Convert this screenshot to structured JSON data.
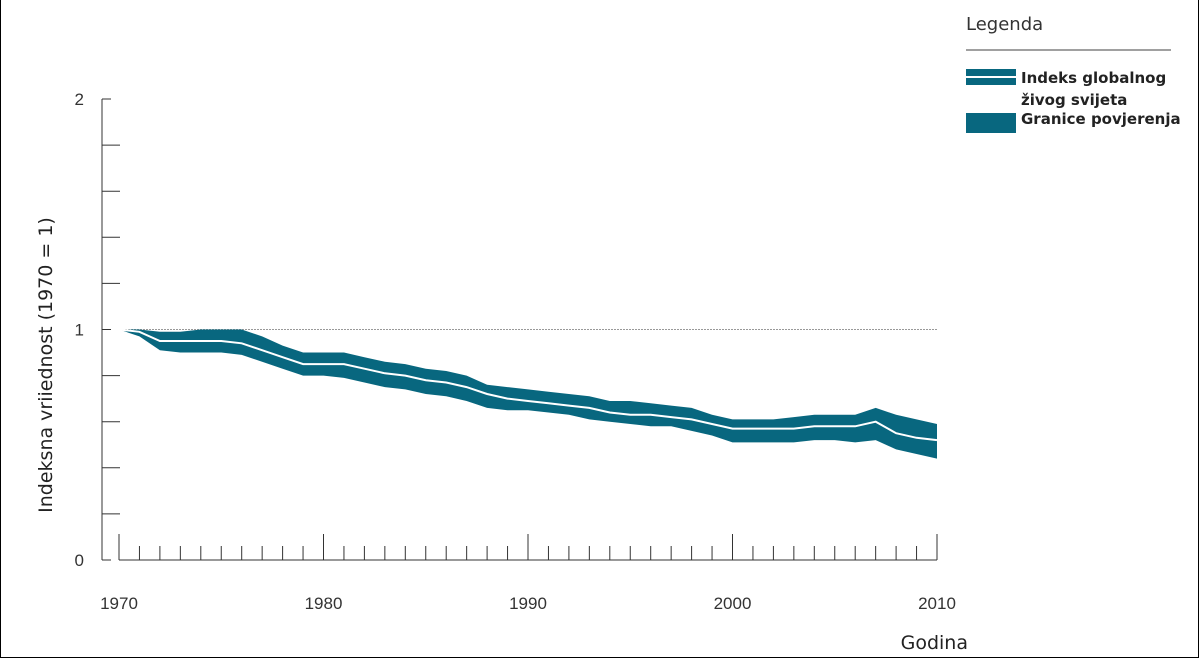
{
  "chart_data": {
    "type": "area",
    "title": "",
    "xlabel": "Godina",
    "ylabel": "Indeksna vriiednost (1970 = 1)",
    "xlim": [
      1970,
      2010
    ],
    "ylim": [
      0,
      2
    ],
    "x_ticks": [
      "1970",
      "1980",
      "1990",
      "2000",
      "2010"
    ],
    "y_ticks": [
      "0",
      "1",
      "2"
    ],
    "reference_line": 1,
    "grid": false,
    "legend_position": "top-right",
    "legend": {
      "title": "Legenda",
      "entries": [
        "Indeks globalnog",
        "živog svijeta",
        "Granice povjerenja"
      ]
    },
    "colors": {
      "band": "#08677f",
      "index_line": "#ffffff",
      "reference": "#999999",
      "axis": "#333333"
    },
    "series": [
      {
        "x": [
          1970,
          1971,
          1972,
          1973,
          1974,
          1975,
          1976,
          1977,
          1978,
          1979,
          1980,
          1981,
          1982,
          1983,
          1984,
          1985,
          1986,
          1987,
          1988,
          1989,
          1990,
          1991,
          1992,
          1993,
          1994,
          1995,
          1996,
          1997,
          1998,
          1999,
          2000,
          2001,
          2002,
          2003,
          2004,
          2005,
          2006,
          2007,
          2008,
          2009,
          2010
        ],
        "index": [
          1.0,
          0.99,
          0.95,
          0.95,
          0.95,
          0.95,
          0.94,
          0.91,
          0.88,
          0.85,
          0.85,
          0.85,
          0.83,
          0.81,
          0.8,
          0.78,
          0.77,
          0.75,
          0.72,
          0.7,
          0.69,
          0.68,
          0.67,
          0.66,
          0.64,
          0.63,
          0.63,
          0.62,
          0.61,
          0.59,
          0.57,
          0.57,
          0.57,
          0.57,
          0.58,
          0.58,
          0.58,
          0.6,
          0.55,
          0.53,
          0.52
        ],
        "upper": [
          1.0,
          1.0,
          0.99,
          0.99,
          1.0,
          1.0,
          1.0,
          0.97,
          0.93,
          0.9,
          0.9,
          0.9,
          0.88,
          0.86,
          0.85,
          0.83,
          0.82,
          0.8,
          0.76,
          0.75,
          0.74,
          0.73,
          0.72,
          0.71,
          0.69,
          0.69,
          0.68,
          0.67,
          0.66,
          0.63,
          0.61,
          0.61,
          0.61,
          0.62,
          0.63,
          0.63,
          0.63,
          0.66,
          0.63,
          0.61,
          0.59
        ],
        "lower": [
          1.0,
          0.97,
          0.91,
          0.9,
          0.9,
          0.9,
          0.89,
          0.86,
          0.83,
          0.8,
          0.8,
          0.79,
          0.77,
          0.75,
          0.74,
          0.72,
          0.71,
          0.69,
          0.66,
          0.65,
          0.65,
          0.64,
          0.63,
          0.61,
          0.6,
          0.59,
          0.58,
          0.58,
          0.56,
          0.54,
          0.51,
          0.51,
          0.51,
          0.51,
          0.52,
          0.52,
          0.51,
          0.52,
          0.48,
          0.46,
          0.44
        ]
      }
    ]
  }
}
